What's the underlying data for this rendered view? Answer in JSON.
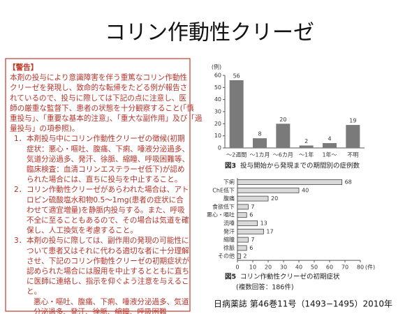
{
  "title": "コリン作動性クリーゼ",
  "warning": {
    "heading": "【警告】",
    "intro": [
      "本剤の投与により意識障害を伴う重篤なコリン作動性",
      "クリーゼを発現し、致命的な転帰をたどる例が報告さ",
      "れているので、投与に際しては下記の点に注意し、医",
      "師の厳重な監督下、患者の状態を十分観察すること(「慎",
      "重投与」、「重要な基本的注意」、「重大な副作用」及び「過",
      "量投与」の項参照)。"
    ],
    "items": [
      {
        "number": "1．",
        "lines": [
          "本剤投与中にコリン作動性クリーゼの徴候(初期",
          "症状：悪心・嘔吐、腹痛、下痢、唾液分泌過多、",
          "気道分泌過多、発汗、徐脈、縮瞳、呼吸困難等、",
          "臨床検査：血清コリンエステラーゼ低下)が認め",
          "られた場合には、直ちに投与を中止すること。"
        ]
      },
      {
        "number": "2．",
        "lines": [
          "コリン作動性クリーゼがあらわれた場合は、アト",
          "ロピン硫酸塩水和物0.5〜1mg(患者の症状に合",
          "わせて適宜増量)を静脈内投与する。また、呼吸",
          "不全に至ることもあるので、その場合は気道を確",
          "保し、人工換気を考慮すること。"
        ]
      },
      {
        "number": "3．",
        "lines": [
          "本剤の投与に際しては、副作用の発現の可能性に",
          "ついて患者又はそれに代わる適切な者に十分理解",
          "させ、下記のコリン作動性クリーゼの初期症状が",
          "認められた場合には服用を中止するとともに直ち",
          "に医師に連絡し、指示を仰ぐよう注意を与えるこ",
          "と。"
        ]
      }
    ],
    "symptoms": [
      "悪心・嘔吐、腹痛、下痢、唾液分泌過多、気道",
      "分泌過多、発汗、徐脈、縮瞳、呼吸困難"
    ]
  },
  "chart_data": [
    {
      "type": "bar",
      "figure": "図3",
      "caption": "投与開始から発現までの期間別の症例数",
      "y_label": "(例)",
      "categories": [
        "〜2週間",
        "〜1カ月",
        "〜6カ月",
        "〜1年",
        "1年〜",
        "不明"
      ],
      "values": [
        56,
        8,
        20,
        2,
        4,
        19
      ],
      "color": "#7a7a7a",
      "ylim": [
        0,
        60
      ],
      "yticks": [
        0,
        10,
        20,
        30,
        40,
        50,
        60
      ],
      "grid": false
    },
    {
      "type": "hbar",
      "figure": "図5",
      "caption": "コリン作動性クリーゼの初期症状",
      "subcaption": "(複数回答：186件)",
      "x_label": "(件)",
      "categories": [
        "下痢",
        "ChE低下",
        "腹痛",
        "食欲低下",
        "悪心・嘔吐",
        "流唾",
        "発汗",
        "縮瞳",
        "徐脈",
        "その他"
      ],
      "values": [
        68,
        40,
        20,
        7,
        6,
        13,
        17,
        7,
        6,
        2
      ],
      "color": "#d9d9d9",
      "xlim": [
        0,
        80
      ],
      "xticks": [
        0,
        10,
        20,
        30,
        40,
        50,
        60,
        70,
        80
      ],
      "grid": false
    }
  ],
  "citation": "日病薬誌 第46巻11号（1493−1495）2010年"
}
